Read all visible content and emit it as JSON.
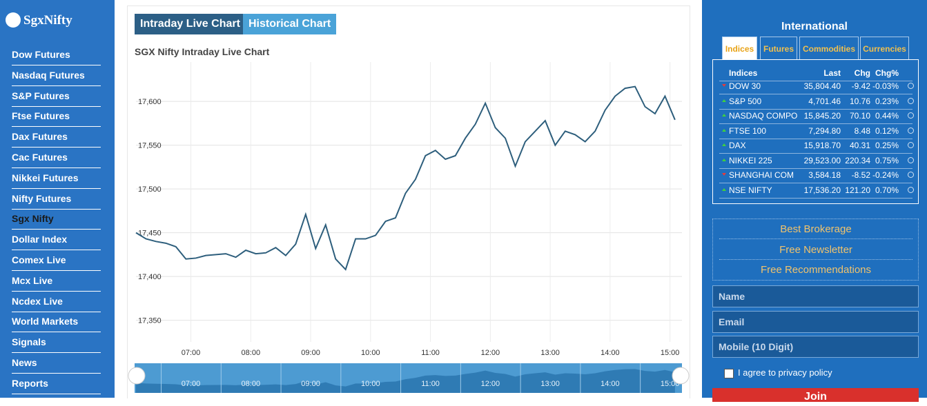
{
  "sidebar": {
    "logo": "SgxNifty",
    "links": [
      "Dow Futures",
      "Nasdaq Futures",
      "S&P Futures",
      "Ftse Futures",
      "Dax Futures",
      "Cac Futures",
      "Nikkei Futures",
      "Nifty Futures",
      "Sgx Nifty",
      "Dollar Index",
      "Comex Live",
      "Mcx Live",
      "Ncdex Live",
      "World Markets",
      "Signals",
      "News",
      "Reports"
    ],
    "active": 8
  },
  "tabs": [
    "Intraday Live Chart",
    "Historical Chart"
  ],
  "chart": {
    "type": "line",
    "title": "SGX Nifty Intraday Live Chart",
    "color": "#2d5e7c",
    "x": [
      "06:05",
      "06:15",
      "06:25",
      "06:35",
      "06:45",
      "06:55",
      "07:05",
      "07:15",
      "07:25",
      "07:35",
      "07:45",
      "07:55",
      "08:05",
      "08:15",
      "08:25",
      "08:35",
      "08:45",
      "08:55",
      "09:05",
      "09:15",
      "09:25",
      "09:35",
      "09:45",
      "09:55",
      "10:05",
      "10:15",
      "10:25",
      "10:35",
      "10:45",
      "10:55",
      "11:05",
      "11:15",
      "11:25",
      "11:35",
      "11:45",
      "11:55",
      "12:05",
      "12:15",
      "12:25",
      "12:35",
      "12:45",
      "12:55",
      "13:05",
      "13:15",
      "13:25",
      "13:35",
      "13:45",
      "13:55",
      "14:05",
      "14:15",
      "14:25",
      "14:35",
      "14:45",
      "14:55",
      "15:05"
    ],
    "values": [
      17450,
      17443,
      17440,
      17438,
      17434,
      17420,
      17421,
      17424,
      17425,
      17426,
      17422,
      17430,
      17426,
      17427,
      17433,
      17424,
      17437,
      17471,
      17432,
      17459,
      17420,
      17408,
      17443,
      17443,
      17447,
      17463,
      17467,
      17495,
      17511,
      17538,
      17544,
      17534,
      17538,
      17558,
      17574,
      17598,
      17570,
      17558,
      17526,
      17554,
      17566,
      17578,
      17550,
      17566,
      17562,
      17554,
      17566,
      17590,
      17606,
      17615,
      17617,
      17594,
      17586,
      17606,
      17579
    ],
    "xlim": [
      "06:05",
      "15:12"
    ],
    "xticks": [
      "07:00",
      "08:00",
      "09:00",
      "10:00",
      "11:00",
      "12:00",
      "13:00",
      "14:00",
      "15:00"
    ],
    "ylim": [
      17330,
      17645
    ],
    "yticks": [
      {
        "value": 17350,
        "label": "17,350"
      },
      {
        "value": 17400,
        "label": "17,400"
      },
      {
        "value": 17450,
        "label": "17,450"
      },
      {
        "value": 17500,
        "label": "17,500"
      },
      {
        "value": 17550,
        "label": "17,550"
      },
      {
        "value": 17600,
        "label": "17,600"
      }
    ],
    "grid": true
  },
  "international": {
    "title": "International",
    "tabs": [
      "Indices",
      "Futures",
      "Commodities",
      "Currencies"
    ],
    "header": [
      "Indices",
      "Last",
      "Chg",
      "Chg%"
    ],
    "rows": [
      [
        "DOW 30",
        "35,804.40",
        "-9.42",
        "-0.03%"
      ],
      [
        "S&P 500",
        "4,701.46",
        "10.76",
        "0.23%"
      ],
      [
        "NASDAQ COMPO",
        "15,845.20",
        "70.10",
        "0.44%"
      ],
      [
        "FTSE 100",
        "7,294.80",
        "8.48",
        "0.12%"
      ],
      [
        "DAX",
        "15,918.70",
        "40.31",
        "0.25%"
      ],
      [
        "NIKKEI 225",
        "29,523.00",
        "220.34",
        "0.75%"
      ],
      [
        "SHANGHAI COM",
        "3,584.18",
        "-8.52",
        "-0.24%"
      ],
      [
        "NSE NIFTY",
        "17,536.20",
        "121.20",
        "0.70%"
      ]
    ]
  },
  "offers": [
    "Best Brokerage",
    "Free Newsletter",
    "Free Recommendations"
  ],
  "form": {
    "fields": [
      "Name",
      "Email",
      "Mobile (10 Digit)"
    ],
    "agree": "I agree to privacy policy",
    "button": "Join"
  }
}
